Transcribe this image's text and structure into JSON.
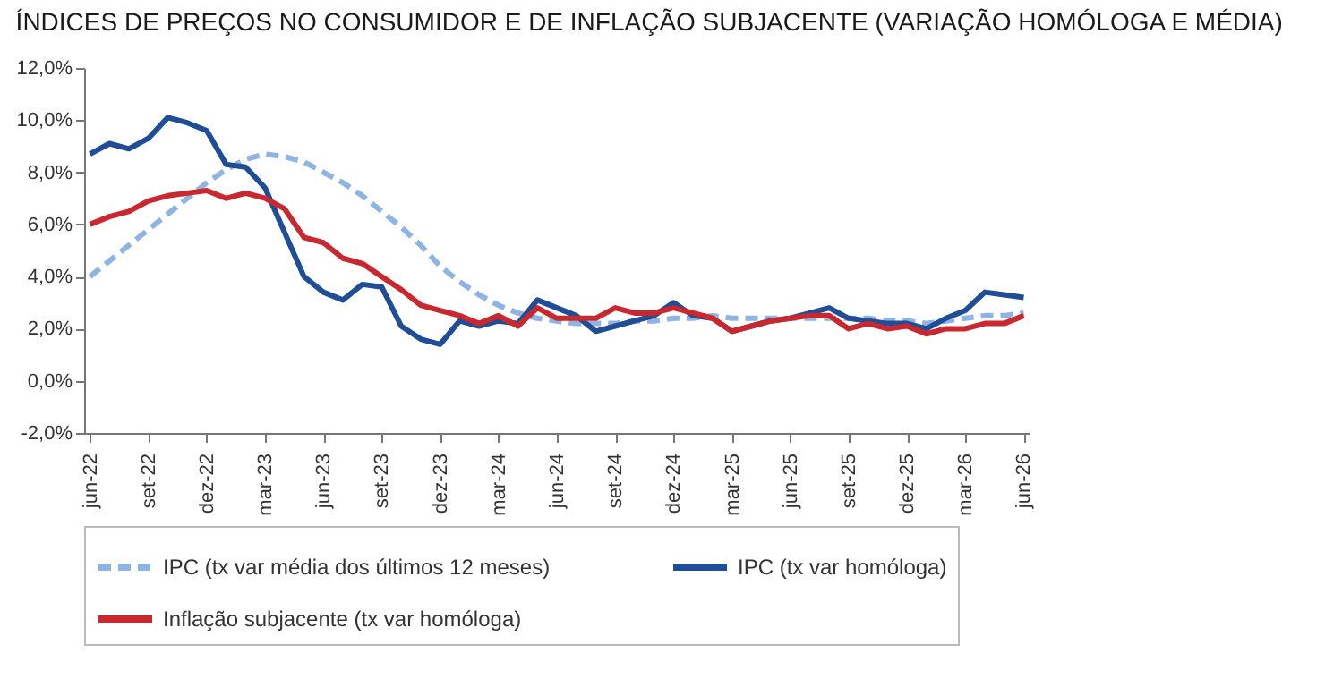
{
  "chart_data": {
    "type": "line",
    "title": "ÍNDICES DE PREÇOS NO CONSUMIDOR E DE INFLAÇÃO SUBJACENTE (VARIAÇÃO HOMÓLOGA E MÉDIA)",
    "categories": [
      "jun-22",
      null,
      null,
      "set-22",
      null,
      null,
      "dez-22",
      null,
      null,
      "mar-23",
      null,
      null,
      "jun-23",
      null,
      null,
      "set-23",
      null,
      null,
      "dez-23",
      null,
      null,
      "mar-24",
      null,
      null,
      "jun-24",
      null,
      null,
      "set-24",
      null,
      null,
      "dez-24",
      null,
      null,
      "mar-25",
      null,
      null,
      "jun-25",
      null,
      null,
      "set-25",
      null,
      null,
      "dez-25",
      null,
      null,
      "mar-26",
      null,
      null,
      "jun-26"
    ],
    "series": [
      {
        "name": "IPC (tx var média dos últimos 12 meses)",
        "color": "#8eb4e3",
        "line_style": "dashed",
        "values": [
          4.0,
          4.6,
          5.2,
          5.8,
          6.4,
          7.0,
          7.6,
          8.1,
          8.5,
          8.7,
          8.6,
          8.4,
          8.0,
          7.6,
          7.1,
          6.5,
          5.9,
          5.2,
          4.4,
          3.8,
          3.3,
          2.9,
          2.6,
          2.4,
          2.3,
          2.2,
          2.2,
          2.2,
          2.3,
          2.3,
          2.4,
          2.4,
          2.5,
          2.4,
          2.4,
          2.4,
          2.4,
          2.4,
          2.4,
          2.4,
          2.4,
          2.3,
          2.3,
          2.2,
          2.3,
          2.4,
          2.5,
          2.5,
          2.6
        ]
      },
      {
        "name": "IPC (tx var homóloga)",
        "color": "#1f4e96",
        "line_style": "solid",
        "values": [
          8.7,
          9.1,
          8.9,
          9.3,
          10.1,
          9.9,
          9.6,
          8.3,
          8.2,
          7.4,
          5.7,
          4.0,
          3.4,
          3.1,
          3.7,
          3.6,
          2.1,
          1.6,
          1.4,
          2.3,
          2.1,
          2.3,
          2.2,
          3.1,
          2.8,
          2.5,
          1.9,
          2.1,
          2.3,
          2.5,
          3.0,
          2.5,
          2.4,
          1.9,
          2.1,
          2.3,
          2.4,
          2.6,
          2.8,
          2.4,
          2.3,
          2.2,
          2.2,
          2.0,
          2.4,
          2.7,
          3.4,
          3.3,
          3.2
        ]
      },
      {
        "name": "Inflação subjacente (tx var homóloga)",
        "color": "#c8282e",
        "line_style": "solid",
        "values": [
          6.0,
          6.3,
          6.5,
          6.9,
          7.1,
          7.2,
          7.3,
          7.0,
          7.2,
          7.0,
          6.6,
          5.5,
          5.3,
          4.7,
          4.5,
          4.0,
          3.5,
          2.9,
          2.7,
          2.5,
          2.2,
          2.5,
          2.1,
          2.8,
          2.4,
          2.4,
          2.4,
          2.8,
          2.6,
          2.6,
          2.8,
          2.6,
          2.4,
          1.9,
          2.1,
          2.3,
          2.4,
          2.5,
          2.5,
          2.0,
          2.2,
          2.0,
          2.1,
          1.8,
          2.0,
          2.0,
          2.2,
          2.2,
          2.5
        ]
      }
    ],
    "ylim": [
      -2,
      12
    ],
    "yticks": [
      {
        "value": -2,
        "label": "-2,0%"
      },
      {
        "value": 0,
        "label": "0,0%"
      },
      {
        "value": 2,
        "label": "2,0%"
      },
      {
        "value": 4,
        "label": "4,0%"
      },
      {
        "value": 6,
        "label": "6,0%"
      },
      {
        "value": 8,
        "label": "8,0%"
      },
      {
        "value": 10,
        "label": "10,0%"
      },
      {
        "value": 12,
        "label": "12,0%"
      }
    ],
    "legend": "bottom",
    "marker": "none"
  }
}
